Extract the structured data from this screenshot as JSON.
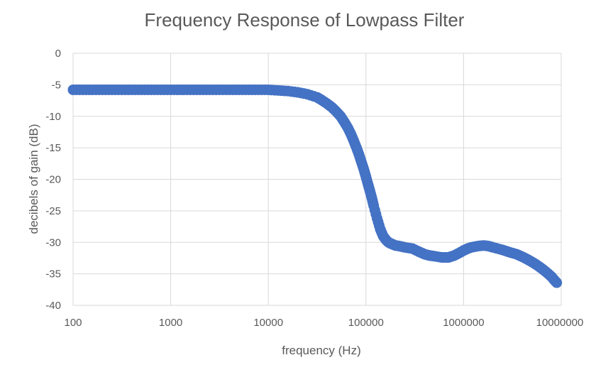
{
  "chart_data": {
    "type": "scatter",
    "title": "Frequency Response of Lowpass Filter",
    "xlabel": "frequency (Hz)",
    "ylabel": "decibels of gain (dB)",
    "x_scale": "log",
    "xlim": [
      100,
      10000000
    ],
    "ylim": [
      -40,
      0
    ],
    "x_ticks": [
      100,
      1000,
      10000,
      100000,
      1000000,
      10000000
    ],
    "x_tick_labels": [
      "100",
      "1000",
      "10000",
      "100000",
      "1000000",
      "10000000"
    ],
    "y_ticks": [
      0,
      -5,
      -10,
      -15,
      -20,
      -25,
      -30,
      -35,
      -40
    ],
    "y_tick_labels": [
      "0",
      "-5",
      "-10",
      "-15",
      "-20",
      "-25",
      "-30",
      "-35",
      "-40"
    ],
    "grid": true,
    "legend": "none",
    "marker_color": "#4472c4",
    "series": [
      {
        "x": [
          100,
          126,
          158,
          200,
          251,
          316,
          398,
          501,
          631,
          794,
          1000,
          1259,
          1585,
          1995,
          2512,
          3162,
          3981,
          5012,
          6310,
          7943,
          10000,
          12589,
          15849,
          19953,
          25119,
          31623,
          35000,
          40000,
          45000,
          50000,
          55000,
          60000,
          65000,
          70000,
          75000,
          80000,
          85000,
          90000,
          95000,
          100000,
          105000,
          110000,
          115000,
          120000,
          130000,
          140000,
          150000,
          160000,
          170000,
          180000,
          200000,
          220000,
          250000,
          300000,
          350000,
          400000,
          450000,
          500000,
          600000,
          700000,
          800000,
          900000,
          1000000,
          1100000,
          1200000,
          1400000,
          1600000,
          1800000,
          2000000,
          2500000,
          3000000,
          3500000,
          4000000,
          4500000,
          5000000,
          5500000,
          6000000,
          6500000,
          7000000,
          7500000,
          8000000,
          8500000,
          9000000
        ],
        "y": [
          -5.8,
          -5.8,
          -5.8,
          -5.8,
          -5.8,
          -5.8,
          -5.8,
          -5.8,
          -5.8,
          -5.8,
          -5.8,
          -5.8,
          -5.8,
          -5.8,
          -5.8,
          -5.8,
          -5.8,
          -5.8,
          -5.8,
          -5.8,
          -5.8,
          -5.9,
          -6.0,
          -6.2,
          -6.5,
          -7.0,
          -7.4,
          -8.0,
          -8.6,
          -9.3,
          -10.0,
          -10.9,
          -11.8,
          -12.8,
          -13.9,
          -15.0,
          -16.1,
          -17.3,
          -18.4,
          -19.6,
          -20.8,
          -21.9,
          -23.0,
          -24.2,
          -26.2,
          -27.9,
          -29.0,
          -29.6,
          -30.0,
          -30.2,
          -30.5,
          -30.6,
          -30.8,
          -31.0,
          -31.5,
          -31.9,
          -32.1,
          -32.2,
          -32.4,
          -32.4,
          -32.1,
          -31.7,
          -31.3,
          -31.0,
          -30.8,
          -30.6,
          -30.5,
          -30.6,
          -30.8,
          -31.2,
          -31.6,
          -31.9,
          -32.3,
          -32.7,
          -33.1,
          -33.5,
          -33.9,
          -34.3,
          -34.7,
          -35.1,
          -35.5,
          -36.0,
          -36.4
        ]
      }
    ]
  }
}
